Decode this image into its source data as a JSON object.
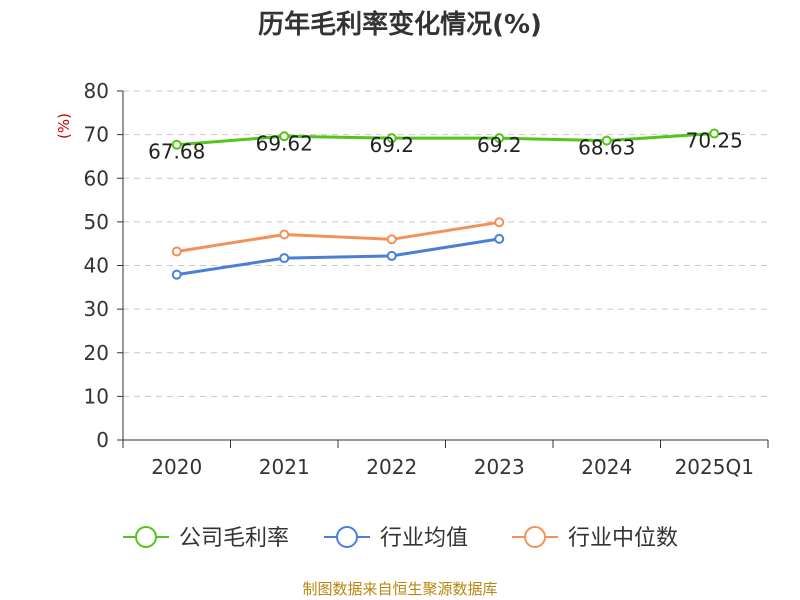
{
  "chart_data": {
    "type": "line",
    "title": "历年毛利率变化情况(%)",
    "yunit": "(%)",
    "categories": [
      "2020",
      "2021",
      "2022",
      "2023",
      "2024",
      "2025Q1"
    ],
    "ylim": [
      0,
      80
    ],
    "yticks": [
      "0",
      "10",
      "20",
      "30",
      "40",
      "50",
      "60",
      "70",
      "80"
    ],
    "grid": true,
    "legend_position": "bottom",
    "series": [
      {
        "name": "公司毛利率",
        "color": "#52c41a",
        "values": [
          67.68,
          69.62,
          69.2,
          69.2,
          68.63,
          70.25
        ],
        "labels": [
          "67.68",
          "69.62",
          "69.2",
          "69.2",
          "68.63",
          "70.25"
        ]
      },
      {
        "name": "行业均值",
        "color": "#4a7fd8",
        "values": [
          37.9,
          41.7,
          42.2,
          46.1,
          null,
          null
        ]
      },
      {
        "name": "行业中位数",
        "color": "#f4915a",
        "values": [
          43.2,
          47.1,
          46.0,
          49.9,
          null,
          null
        ]
      }
    ]
  },
  "source": "制图数据来自恒生聚源数据库"
}
